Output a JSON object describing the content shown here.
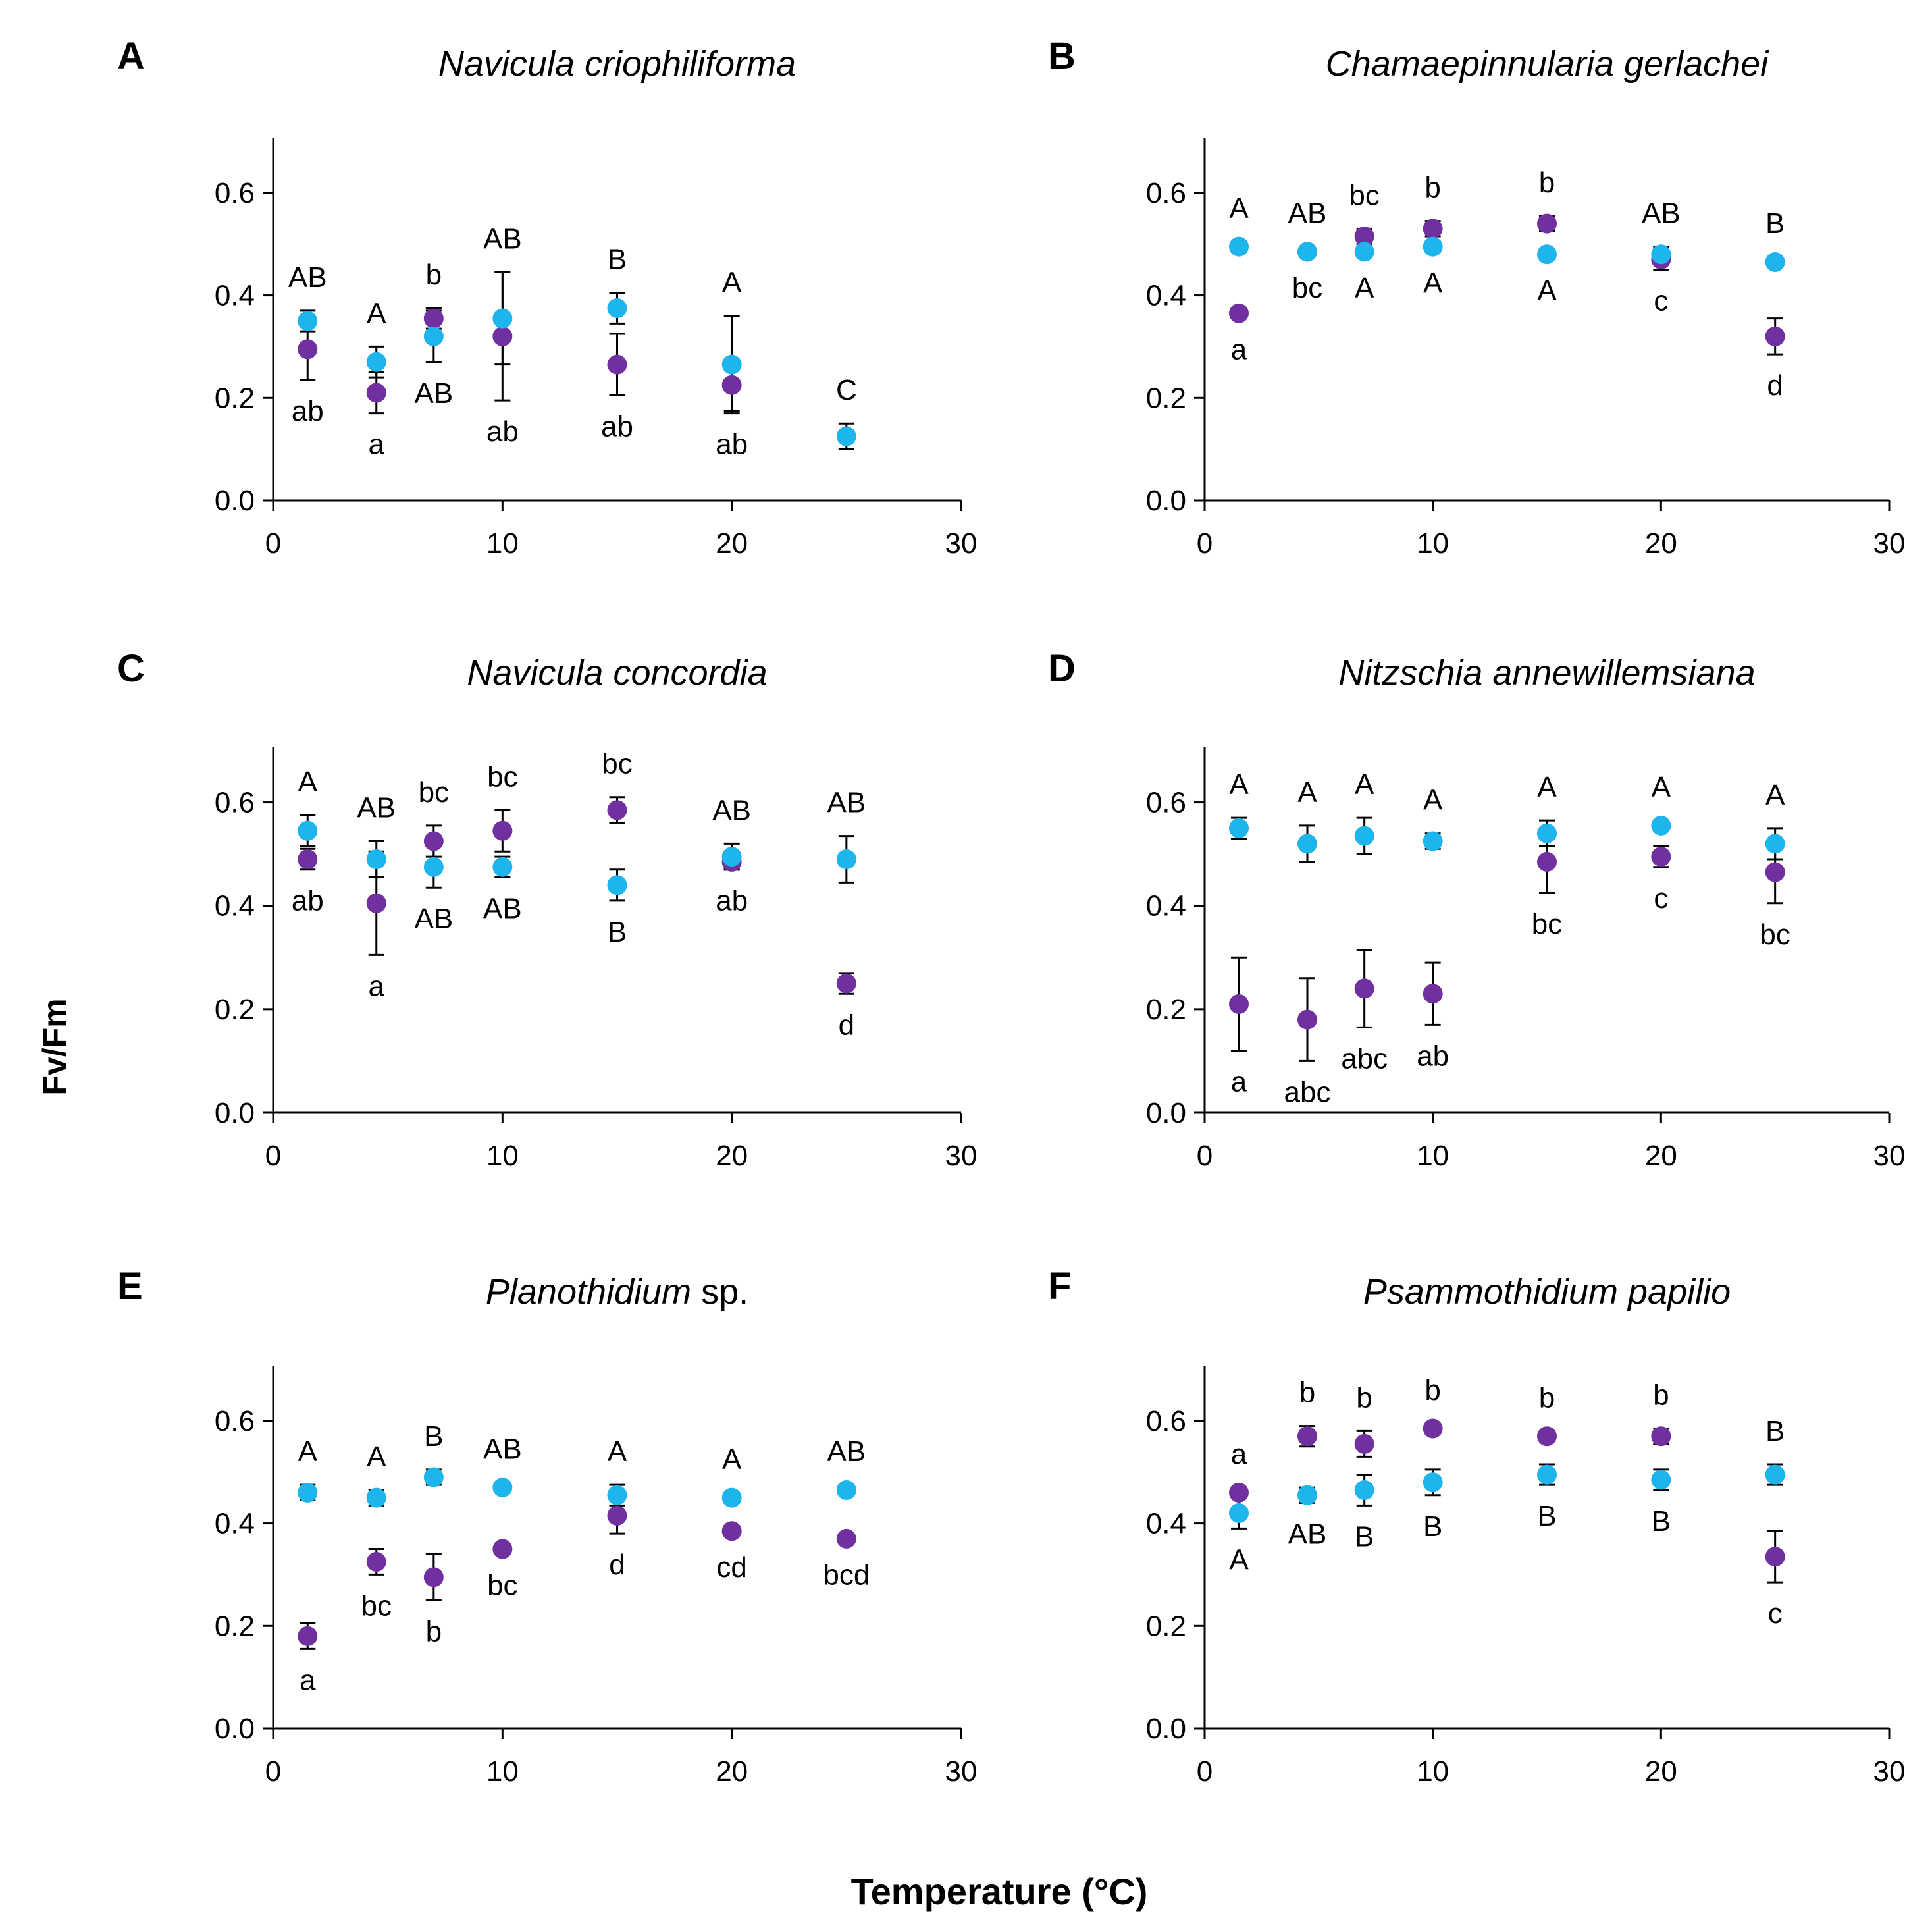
{
  "figure": {
    "ylabel": "Fv/Fm",
    "xlabel": "Temperature (°C)"
  },
  "colors": {
    "series_a": "#1eb4ec",
    "series_b": "#7030a0",
    "axis": "#000000"
  },
  "chart_data": [
    {
      "type": "scatter",
      "panel": "A",
      "title": "Navicula criophiliforma",
      "title_parts": [
        {
          "text": "Navicula criophiliforma",
          "italic": true
        }
      ],
      "xlim": [
        0,
        30
      ],
      "ylim": [
        0,
        0.7
      ],
      "xticks": [
        0,
        10,
        20,
        30
      ],
      "xtick_labels": [
        "0",
        "10",
        "20",
        "30"
      ],
      "yticks": [
        0,
        0.2,
        0.4,
        0.6
      ],
      "ytick_labels": [
        "0.0",
        "0.2",
        "0.4",
        "0.6"
      ],
      "x": [
        1.5,
        4.5,
        7,
        10,
        15,
        20,
        25
      ],
      "series": [
        {
          "name": "cyan",
          "color": "#1eb4ec",
          "values": [
            0.35,
            0.27,
            0.32,
            0.355,
            0.375,
            0.265,
            0.125
          ],
          "errors": [
            0.02,
            0.03,
            0.05,
            0.09,
            0.03,
            0.095,
            0.025
          ],
          "labels": [
            "AB",
            "A",
            "AB",
            "AB",
            "B",
            "A",
            "C"
          ]
        },
        {
          "name": "purple",
          "color": "#7030a0",
          "values": [
            0.295,
            0.21,
            0.355,
            0.32,
            0.265,
            0.225,
            null
          ],
          "errors": [
            0.06,
            0.04,
            0.02,
            0.125,
            0.06,
            0.05,
            null
          ],
          "labels": [
            "ab",
            "a",
            "b",
            "ab",
            "ab",
            "ab",
            ""
          ]
        }
      ]
    },
    {
      "type": "scatter",
      "panel": "B",
      "title": "Chamaepinnularia gerlachei",
      "title_parts": [
        {
          "text": "Chamaepinnularia gerlachei",
          "italic": true
        }
      ],
      "xlim": [
        0,
        30
      ],
      "ylim": [
        0,
        0.7
      ],
      "xticks": [
        0,
        10,
        20,
        30
      ],
      "xtick_labels": [
        "0",
        "10",
        "20",
        "30"
      ],
      "yticks": [
        0,
        0.2,
        0.4,
        0.6
      ],
      "ytick_labels": [
        "0.0",
        "0.2",
        "0.4",
        "0.6"
      ],
      "x": [
        1.5,
        4.5,
        7,
        10,
        15,
        20,
        25
      ],
      "series": [
        {
          "name": "cyan",
          "color": "#1eb4ec",
          "values": [
            0.495,
            0.485,
            0.485,
            0.495,
            0.48,
            0.48,
            0.465
          ],
          "errors": [
            0.01,
            0.01,
            0.01,
            0.01,
            0.01,
            0.015,
            0.01
          ],
          "labels": [
            "A",
            "AB",
            "A",
            "A",
            "A",
            "AB",
            "B"
          ]
        },
        {
          "name": "purple",
          "color": "#7030a0",
          "values": [
            0.365,
            0.485,
            0.515,
            0.53,
            0.54,
            0.47,
            0.32
          ],
          "errors": [
            0.01,
            0.01,
            0.015,
            0.015,
            0.015,
            0.02,
            0.035
          ],
          "labels": [
            "a",
            "bc",
            "bc",
            "b",
            "b",
            "c",
            "d"
          ]
        }
      ]
    },
    {
      "type": "scatter",
      "panel": "C",
      "title": "Navicula concordia",
      "title_parts": [
        {
          "text": "Navicula concordia",
          "italic": true
        }
      ],
      "xlim": [
        0,
        30
      ],
      "ylim": [
        0,
        0.7
      ],
      "xticks": [
        0,
        10,
        20,
        30
      ],
      "xtick_labels": [
        "0",
        "10",
        "20",
        "30"
      ],
      "yticks": [
        0,
        0.2,
        0.4,
        0.6
      ],
      "ytick_labels": [
        "0.0",
        "0.2",
        "0.4",
        "0.6"
      ],
      "x": [
        1.5,
        4.5,
        7,
        10,
        15,
        20,
        25
      ],
      "series": [
        {
          "name": "cyan",
          "color": "#1eb4ec",
          "values": [
            0.545,
            0.49,
            0.475,
            0.475,
            0.44,
            0.495,
            0.49
          ],
          "errors": [
            0.03,
            0.035,
            0.04,
            0.02,
            0.03,
            0.025,
            0.045
          ],
          "labels": [
            "A",
            "AB",
            "AB",
            "AB",
            "B",
            "AB",
            "AB"
          ]
        },
        {
          "name": "purple",
          "color": "#7030a0",
          "values": [
            0.49,
            0.405,
            0.525,
            0.545,
            0.585,
            0.485,
            0.25
          ],
          "errors": [
            0.02,
            0.1,
            0.03,
            0.04,
            0.025,
            0.015,
            0.02
          ],
          "labels": [
            "ab",
            "a",
            "bc",
            "bc",
            "bc",
            "ab",
            "d"
          ]
        }
      ]
    },
    {
      "type": "scatter",
      "panel": "D",
      "title": "Nitzschia annewillemsiana",
      "title_parts": [
        {
          "text": "Nitzschia annewillemsiana",
          "italic": true
        }
      ],
      "xlim": [
        0,
        30
      ],
      "ylim": [
        0,
        0.7
      ],
      "xticks": [
        0,
        10,
        20,
        30
      ],
      "xtick_labels": [
        "0",
        "10",
        "20",
        "30"
      ],
      "yticks": [
        0,
        0.2,
        0.4,
        0.6
      ],
      "ytick_labels": [
        "0.0",
        "0.2",
        "0.4",
        "0.6"
      ],
      "x": [
        1.5,
        4.5,
        7,
        10,
        15,
        20,
        25
      ],
      "series": [
        {
          "name": "cyan",
          "color": "#1eb4ec",
          "values": [
            0.55,
            0.52,
            0.535,
            0.525,
            0.54,
            0.555,
            0.52
          ],
          "errors": [
            0.02,
            0.035,
            0.035,
            0.015,
            0.025,
            0.01,
            0.03
          ],
          "labels": [
            "A",
            "A",
            "A",
            "A",
            "A",
            "A",
            "A"
          ]
        },
        {
          "name": "purple",
          "color": "#7030a0",
          "values": [
            0.21,
            0.18,
            0.24,
            0.23,
            0.485,
            0.495,
            0.465
          ],
          "errors": [
            0.09,
            0.08,
            0.075,
            0.06,
            0.06,
            0.02,
            0.06
          ],
          "labels": [
            "a",
            "abc",
            "abc",
            "ab",
            "bc",
            "c",
            "bc"
          ]
        }
      ]
    },
    {
      "type": "scatter",
      "panel": "E",
      "title": "Planothidium sp.",
      "title_parts": [
        {
          "text": "Planothidium",
          "italic": true
        },
        {
          "text": " sp.",
          "italic": false
        }
      ],
      "xlim": [
        0,
        30
      ],
      "ylim": [
        0,
        0.7
      ],
      "xticks": [
        0,
        10,
        20,
        30
      ],
      "xtick_labels": [
        "0",
        "10",
        "20",
        "30"
      ],
      "yticks": [
        0,
        0.2,
        0.4,
        0.6
      ],
      "ytick_labels": [
        "0.0",
        "0.2",
        "0.4",
        "0.6"
      ],
      "x": [
        1.5,
        4.5,
        7,
        10,
        15,
        20,
        25
      ],
      "series": [
        {
          "name": "cyan",
          "color": "#1eb4ec",
          "values": [
            0.46,
            0.45,
            0.49,
            0.47,
            0.455,
            0.45,
            0.465
          ],
          "errors": [
            0.015,
            0.015,
            0.015,
            0.01,
            0.02,
            0.01,
            0.01
          ],
          "labels": [
            "A",
            "A",
            "B",
            "AB",
            "A",
            "A",
            "AB"
          ]
        },
        {
          "name": "purple",
          "color": "#7030a0",
          "values": [
            0.18,
            0.325,
            0.295,
            0.35,
            0.415,
            0.385,
            0.37
          ],
          "errors": [
            0.025,
            0.025,
            0.045,
            0.01,
            0.035,
            0.01,
            0.01
          ],
          "labels": [
            "a",
            "bc",
            "b",
            "bc",
            "d",
            "cd",
            "bcd"
          ]
        }
      ]
    },
    {
      "type": "scatter",
      "panel": "F",
      "title": "Psammothidium papilio",
      "title_parts": [
        {
          "text": "Psammothidium papilio",
          "italic": true
        }
      ],
      "xlim": [
        0,
        30
      ],
      "ylim": [
        0,
        0.7
      ],
      "xticks": [
        0,
        10,
        20,
        30
      ],
      "xtick_labels": [
        "0",
        "10",
        "20",
        "30"
      ],
      "yticks": [
        0,
        0.2,
        0.4,
        0.6
      ],
      "ytick_labels": [
        "0.0",
        "0.2",
        "0.4",
        "0.6"
      ],
      "x": [
        1.5,
        4.5,
        7,
        10,
        15,
        20,
        25
      ],
      "series": [
        {
          "name": "cyan",
          "color": "#1eb4ec",
          "values": [
            0.42,
            0.455,
            0.465,
            0.48,
            0.495,
            0.485,
            0.495
          ],
          "errors": [
            0.03,
            0.015,
            0.03,
            0.025,
            0.02,
            0.02,
            0.02
          ],
          "labels": [
            "A",
            "AB",
            "B",
            "B",
            "B",
            "B",
            "B"
          ]
        },
        {
          "name": "purple",
          "color": "#7030a0",
          "values": [
            0.46,
            0.57,
            0.555,
            0.585,
            0.57,
            0.57,
            0.335
          ],
          "errors": [
            0.01,
            0.02,
            0.025,
            0.01,
            0.01,
            0.015,
            0.05
          ],
          "labels": [
            "a",
            "b",
            "b",
            "b",
            "b",
            "b",
            "c"
          ]
        }
      ]
    }
  ]
}
